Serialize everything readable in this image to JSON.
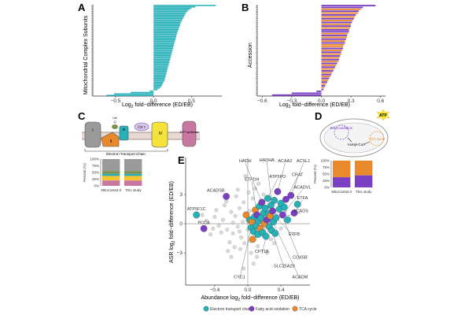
{
  "panel_labels": {
    "a": "A",
    "b": "B",
    "c": "C",
    "d": "D",
    "e": "E"
  },
  "colors": {
    "teal": "#26b0b8",
    "purple": "#7b3fc4",
    "orange": "#e8892b",
    "dark_teal": "#1f8f8f",
    "yellow": "#f5c231",
    "pink": "#c878a0",
    "light_grey": "#c8c8c8",
    "membrane": "#b8a29a"
  },
  "chart_data": [
    {
      "panel": "A",
      "type": "bar",
      "orientation": "horizontal",
      "xlabel_prefix": "Log",
      "xlabel_sub": "2",
      "xlabel_suffix": " fold−difference (ED/EB)",
      "ylabel": "Mitochondrial Complex Subunits",
      "xticks": [
        "−0.5",
        "0.0",
        "0.5"
      ],
      "xtick_values": [
        -0.5,
        0.0,
        0.5
      ],
      "xlim": [
        -0.8,
        0.9
      ],
      "series": [
        {
          "name": "Electron transport chain subunits",
          "color": "#26b0b8",
          "values": [
            0.82,
            0.55,
            0.5,
            0.47,
            0.45,
            0.43,
            0.42,
            0.41,
            0.4,
            0.39,
            0.38,
            0.37,
            0.36,
            0.35,
            0.35,
            0.34,
            0.33,
            0.33,
            0.32,
            0.31,
            0.31,
            0.3,
            0.3,
            0.29,
            0.29,
            0.28,
            0.28,
            0.27,
            0.27,
            0.26,
            0.26,
            0.25,
            0.25,
            0.24,
            0.24,
            0.23,
            0.23,
            0.22,
            0.22,
            0.21,
            0.21,
            0.2,
            0.2,
            0.19,
            0.19,
            0.18,
            0.18,
            0.17,
            0.17,
            0.16,
            0.16,
            0.15,
            0.15,
            0.14,
            0.13,
            0.12,
            0.11,
            0.1,
            0.08,
            0.05,
            -0.05,
            -0.3,
            -0.52,
            -0.62
          ]
        }
      ]
    },
    {
      "panel": "B",
      "type": "bar",
      "orientation": "horizontal",
      "xlabel_prefix": "Log",
      "xlabel_sub": "2",
      "xlabel_suffix": " fold−difference (ED/EB)",
      "ylabel": "Accession",
      "xticks": [
        "−0.6",
        "−0.3",
        "0.0",
        "0.3",
        "0.6"
      ],
      "xtick_values": [
        -0.6,
        -0.3,
        0.0,
        0.3,
        0.6
      ],
      "xlim": [
        -0.65,
        0.65
      ],
      "series": [
        {
          "name": "Fatty acid oxidation",
          "color": "#7b3fc4"
        },
        {
          "name": "TCA cycle",
          "color": "#e8892b"
        }
      ],
      "values": [
        0.55,
        0.42,
        0.4,
        0.38,
        0.37,
        0.35,
        0.34,
        0.33,
        0.32,
        0.31,
        0.3,
        0.3,
        0.29,
        0.28,
        0.28,
        0.27,
        0.26,
        0.26,
        0.25,
        0.24,
        0.24,
        0.23,
        0.22,
        0.22,
        0.21,
        0.2,
        0.2,
        0.19,
        0.18,
        0.18,
        0.17,
        0.16,
        0.15,
        0.14,
        0.13,
        0.12,
        0.11,
        0.1,
        0.09,
        0.08,
        0.07,
        0.06,
        0.05,
        0.04,
        0.03,
        0.02,
        -0.05,
        -0.3,
        -0.5
      ],
      "groups": [
        0,
        0,
        1,
        0,
        1,
        0,
        1,
        0,
        1,
        0,
        1,
        0,
        1,
        0,
        0,
        1,
        0,
        1,
        0,
        1,
        0,
        1,
        1,
        0,
        1,
        0,
        1,
        0,
        1,
        0,
        1,
        0,
        1,
        0,
        1,
        0,
        1,
        0,
        1,
        0,
        1,
        0,
        1,
        0,
        1,
        0,
        0,
        0,
        0
      ]
    },
    {
      "panel": "C-inset",
      "type": "bar",
      "stacked": true,
      "ylabel": "Percent (%)",
      "yticks": [
        "100%",
        "75%",
        "50%",
        "25%",
        "0%"
      ],
      "categories": [
        "MitoCarta3.0",
        "This study"
      ],
      "series": [
        {
          "name": "grey",
          "color": "#9a9a9a",
          "values": [
            45,
            45
          ]
        },
        {
          "name": "olive",
          "color": "#7f8f4e",
          "values": [
            10,
            10
          ]
        },
        {
          "name": "teal",
          "color": "#26b0b8",
          "values": [
            8,
            8
          ]
        },
        {
          "name": "yellow",
          "color": "#f5c231",
          "values": [
            17,
            17
          ]
        },
        {
          "name": "pink",
          "color": "#c878a0",
          "values": [
            20,
            20
          ]
        }
      ]
    },
    {
      "panel": "D-inset",
      "type": "bar",
      "stacked": true,
      "ylabel": "Percent (%)",
      "yticks": [
        "100%",
        "75%",
        "50%",
        "25%",
        "0%"
      ],
      "categories": [
        "MitoCarta3.0",
        "This study"
      ],
      "series": [
        {
          "name": "TCA cycle",
          "color": "#e8892b",
          "values": [
            62,
            55
          ]
        },
        {
          "name": "Fatty acid oxidation",
          "color": "#7b3fc4",
          "values": [
            38,
            45
          ]
        }
      ]
    },
    {
      "panel": "E",
      "type": "scatter",
      "xlabel_prefix": "Abundance log",
      "xlabel_sub": "2",
      "xlabel_suffix": " fold−difference (ED/EB)",
      "ylabel_prefix": "ASR log",
      "ylabel_sub": "2",
      "ylabel_suffix": " fold−difference (ED/EB)",
      "xticks": [
        "−0.4",
        "0.0",
        "0.4"
      ],
      "xtick_values": [
        -0.4,
        0.0,
        0.4
      ],
      "yticks": [
        "3",
        "0",
        "−3"
      ],
      "ytick_values": [
        3,
        0,
        -3
      ],
      "xlim": [
        -0.75,
        0.75
      ],
      "ylim": [
        -6.3,
        6.8
      ],
      "legend": [
        {
          "name": "Electron transport chain",
          "color": "#26b0b8"
        },
        {
          "name": "Fatty acid oxidation",
          "color": "#7b3fc4"
        },
        {
          "name": "TCA cycle",
          "color": "#e8892b"
        }
      ],
      "background_points": [
        [
          -0.3,
          0.4
        ],
        [
          -0.25,
          -0.6
        ],
        [
          -0.2,
          1.2
        ],
        [
          -0.18,
          -1.0
        ],
        [
          -0.15,
          0.8
        ],
        [
          -0.12,
          -0.3
        ],
        [
          -0.1,
          1.6
        ],
        [
          -0.08,
          -1.4
        ],
        [
          -0.06,
          0.2
        ],
        [
          -0.05,
          2.2
        ],
        [
          -0.04,
          -2.0
        ],
        [
          -0.02,
          0.9
        ],
        [
          0.0,
          -0.6
        ],
        [
          0.02,
          1.3
        ],
        [
          0.03,
          -1.8
        ],
        [
          0.05,
          0.5
        ],
        [
          0.06,
          2.6
        ],
        [
          0.08,
          -0.9
        ],
        [
          0.1,
          1.1
        ],
        [
          0.12,
          -2.3
        ],
        [
          0.14,
          0.3
        ],
        [
          0.16,
          1.9
        ],
        [
          0.18,
          -1.2
        ],
        [
          0.2,
          0.7
        ],
        [
          0.22,
          -0.4
        ],
        [
          0.25,
          1.5
        ],
        [
          0.28,
          -1.6
        ],
        [
          0.3,
          0.2
        ],
        [
          0.35,
          0.9
        ],
        [
          -0.35,
          -0.2
        ],
        [
          -0.4,
          0.7
        ],
        [
          -0.45,
          -1.1
        ],
        [
          -0.28,
          1.9
        ],
        [
          -0.22,
          -1.9
        ],
        [
          -0.14,
          2.8
        ],
        [
          -0.09,
          -2.6
        ],
        [
          0.01,
          3.2
        ],
        [
          0.04,
          -3.0
        ],
        [
          0.09,
          3.6
        ],
        [
          0.11,
          -3.4
        ],
        [
          -0.32,
          -0.9
        ],
        [
          -0.5,
          0.3
        ],
        [
          -0.38,
          1.4
        ],
        [
          0.4,
          -0.5
        ],
        [
          0.45,
          1.2
        ],
        [
          -0.26,
          2.3
        ],
        [
          -0.16,
          -2.4
        ],
        [
          0.07,
          -4.1
        ],
        [
          -0.05,
          -4.6
        ],
        [
          0.13,
          4.1
        ],
        [
          -0.03,
          4.9
        ],
        [
          -0.2,
          -3.4
        ],
        [
          0.23,
          -3.0
        ],
        [
          -0.1,
          -0.8
        ],
        [
          0.0,
          0.4
        ],
        [
          0.15,
          -0.1
        ],
        [
          -0.18,
          0.1
        ],
        [
          0.26,
          2.6
        ],
        [
          -0.42,
          -0.5
        ],
        [
          -0.55,
          0.9
        ],
        [
          -0.12,
          3.5
        ],
        [
          0.19,
          3.0
        ],
        [
          -0.24,
          -2.8
        ],
        [
          0.32,
          -2.0
        ]
      ],
      "points": [
        {
          "x": -0.62,
          "y": 0.9,
          "group": 0,
          "label": "ATP5F1C"
        },
        {
          "x": -0.53,
          "y": -0.5,
          "group": 1,
          "label": "PCCA"
        },
        {
          "x": -0.26,
          "y": 2.8,
          "group": 1,
          "label": "ACADSB"
        },
        {
          "x": 0.02,
          "y": 0.4,
          "group": 0
        },
        {
          "x": 0.04,
          "y": -0.4,
          "group": 0
        },
        {
          "x": 0.05,
          "y": 0.2,
          "group": 2
        },
        {
          "x": 0.07,
          "y": -0.8,
          "group": 0
        },
        {
          "x": 0.08,
          "y": 0.7,
          "group": 0
        },
        {
          "x": 0.09,
          "y": 1.4,
          "group": 2
        },
        {
          "x": 0.1,
          "y": -0.2,
          "group": 0
        },
        {
          "x": 0.11,
          "y": 0.9,
          "group": 1
        },
        {
          "x": 0.12,
          "y": -1.1,
          "group": 0
        },
        {
          "x": 0.13,
          "y": 0.3,
          "group": 0
        },
        {
          "x": 0.14,
          "y": 1.8,
          "group": 0
        },
        {
          "x": 0.15,
          "y": -0.5,
          "group": 2
        },
        {
          "x": 0.16,
          "y": 0.6,
          "group": 0
        },
        {
          "x": 0.17,
          "y": 2.2,
          "group": 1
        },
        {
          "x": 0.18,
          "y": -0.9,
          "group": 0
        },
        {
          "x": 0.19,
          "y": 1.1,
          "group": 0
        },
        {
          "x": 0.2,
          "y": 0.0,
          "group": 2
        },
        {
          "x": 0.21,
          "y": 1.6,
          "group": 0
        },
        {
          "x": 0.22,
          "y": -1.3,
          "group": 0
        },
        {
          "x": 0.23,
          "y": 0.4,
          "group": 1
        },
        {
          "x": 0.24,
          "y": 2.6,
          "group": 0
        },
        {
          "x": 0.25,
          "y": 1.0,
          "group": 0
        },
        {
          "x": 0.26,
          "y": -0.3,
          "group": 0
        },
        {
          "x": 0.27,
          "y": 0.8,
          "group": 2
        },
        {
          "x": 0.28,
          "y": 1.9,
          "group": 0
        },
        {
          "x": 0.29,
          "y": -0.7,
          "group": 0
        },
        {
          "x": 0.3,
          "y": 1.3,
          "group": 1
        },
        {
          "x": 0.31,
          "y": 0.2,
          "group": 0
        },
        {
          "x": 0.32,
          "y": 2.4,
          "group": 0
        },
        {
          "x": 0.33,
          "y": -1.0,
          "group": 0
        },
        {
          "x": 0.34,
          "y": 0.6,
          "group": 0
        },
        {
          "x": 0.36,
          "y": 3.3,
          "group": 1
        },
        {
          "x": 0.38,
          "y": 1.5,
          "group": 0
        },
        {
          "x": 0.4,
          "y": 2.1,
          "group": 0
        },
        {
          "x": 0.42,
          "y": 0.9,
          "group": 1
        },
        {
          "x": 0.44,
          "y": 1.7,
          "group": 0
        },
        {
          "x": 0.46,
          "y": 2.5,
          "group": 1
        },
        {
          "x": 0.48,
          "y": 0.4,
          "group": 0
        },
        {
          "x": 0.52,
          "y": 2.9,
          "group": 1
        },
        {
          "x": 0.56,
          "y": 1.1,
          "group": 1
        },
        {
          "x": 0.6,
          "y": 2.0,
          "group": 0
        },
        {
          "x": -0.02,
          "y": 0.9,
          "group": 2
        },
        {
          "x": 0.06,
          "y": -1.6,
          "group": 2
        }
      ],
      "annotations": [
        {
          "label": "HADH",
          "tx": -0.03,
          "ty": 6.3,
          "px": 0.17,
          "py": 2.2
        },
        {
          "label": "HADHA",
          "tx": 0.23,
          "ty": 6.4,
          "px": 0.3,
          "py": 1.3
        },
        {
          "label": "ACAA2",
          "tx": 0.45,
          "ty": 6.3,
          "px": 0.36,
          "py": 3.3
        },
        {
          "label": "ACSL1",
          "tx": 0.67,
          "ty": 6.3,
          "px": 0.52,
          "py": 2.9
        },
        {
          "label": "ETFDH",
          "tx": 0.05,
          "ty": 4.4,
          "px": 0.11,
          "py": 0.9
        },
        {
          "label": "ATP5PO",
          "tx": 0.36,
          "ty": 4.7,
          "px": 0.24,
          "py": 2.6
        },
        {
          "label": "CRAT",
          "tx": 0.6,
          "ty": 4.9,
          "px": 0.46,
          "py": 2.5
        },
        {
          "label": "ACADVL",
          "tx": 0.66,
          "ty": 3.6,
          "px": 0.42,
          "py": 0.9
        },
        {
          "label": "ETFA",
          "tx": 0.66,
          "ty": 2.5,
          "px": 0.56,
          "py": 1.1
        },
        {
          "label": "ACADS",
          "tx": 0.64,
          "ty": 1.2,
          "px": 0.23,
          "py": 0.4
        },
        {
          "label": "ETFB",
          "tx": 0.56,
          "ty": -1.2,
          "px": 0.34,
          "py": 0.6
        },
        {
          "label": "CPT1B",
          "tx": 0.17,
          "ty": -3.0,
          "px": 0.3,
          "py": 1.3
        },
        {
          "label": "COX5B",
          "tx": 0.63,
          "ty": -3.6,
          "px": 0.38,
          "py": 1.5
        },
        {
          "label": "SLC25A20",
          "tx": 0.44,
          "ty": -4.5,
          "px": 0.29,
          "py": -0.7
        },
        {
          "label": "ACADM",
          "tx": 0.63,
          "ty": -5.6,
          "px": 0.27,
          "py": 0.8
        },
        {
          "label": "CYC1",
          "tx": -0.1,
          "ty": -5.6,
          "px": 0.04,
          "py": -0.4
        }
      ]
    }
  ],
  "diagram_c": {
    "complexes": [
      "I",
      "II",
      "III",
      "Cyt c",
      "IV",
      "ATP synthase"
    ],
    "mobile_carriers": [
      "Q",
      "Cyt c"
    ],
    "small_labels": [
      "Ubi"
    ],
    "bracket_label": "Electron Transport Chain"
  },
  "diagram_d": {
    "badge": "ATP",
    "beta_label": "Beta-oxidation",
    "acetyl_label": "Acetyl-CoA",
    "tca_label": "TCA cycle"
  }
}
